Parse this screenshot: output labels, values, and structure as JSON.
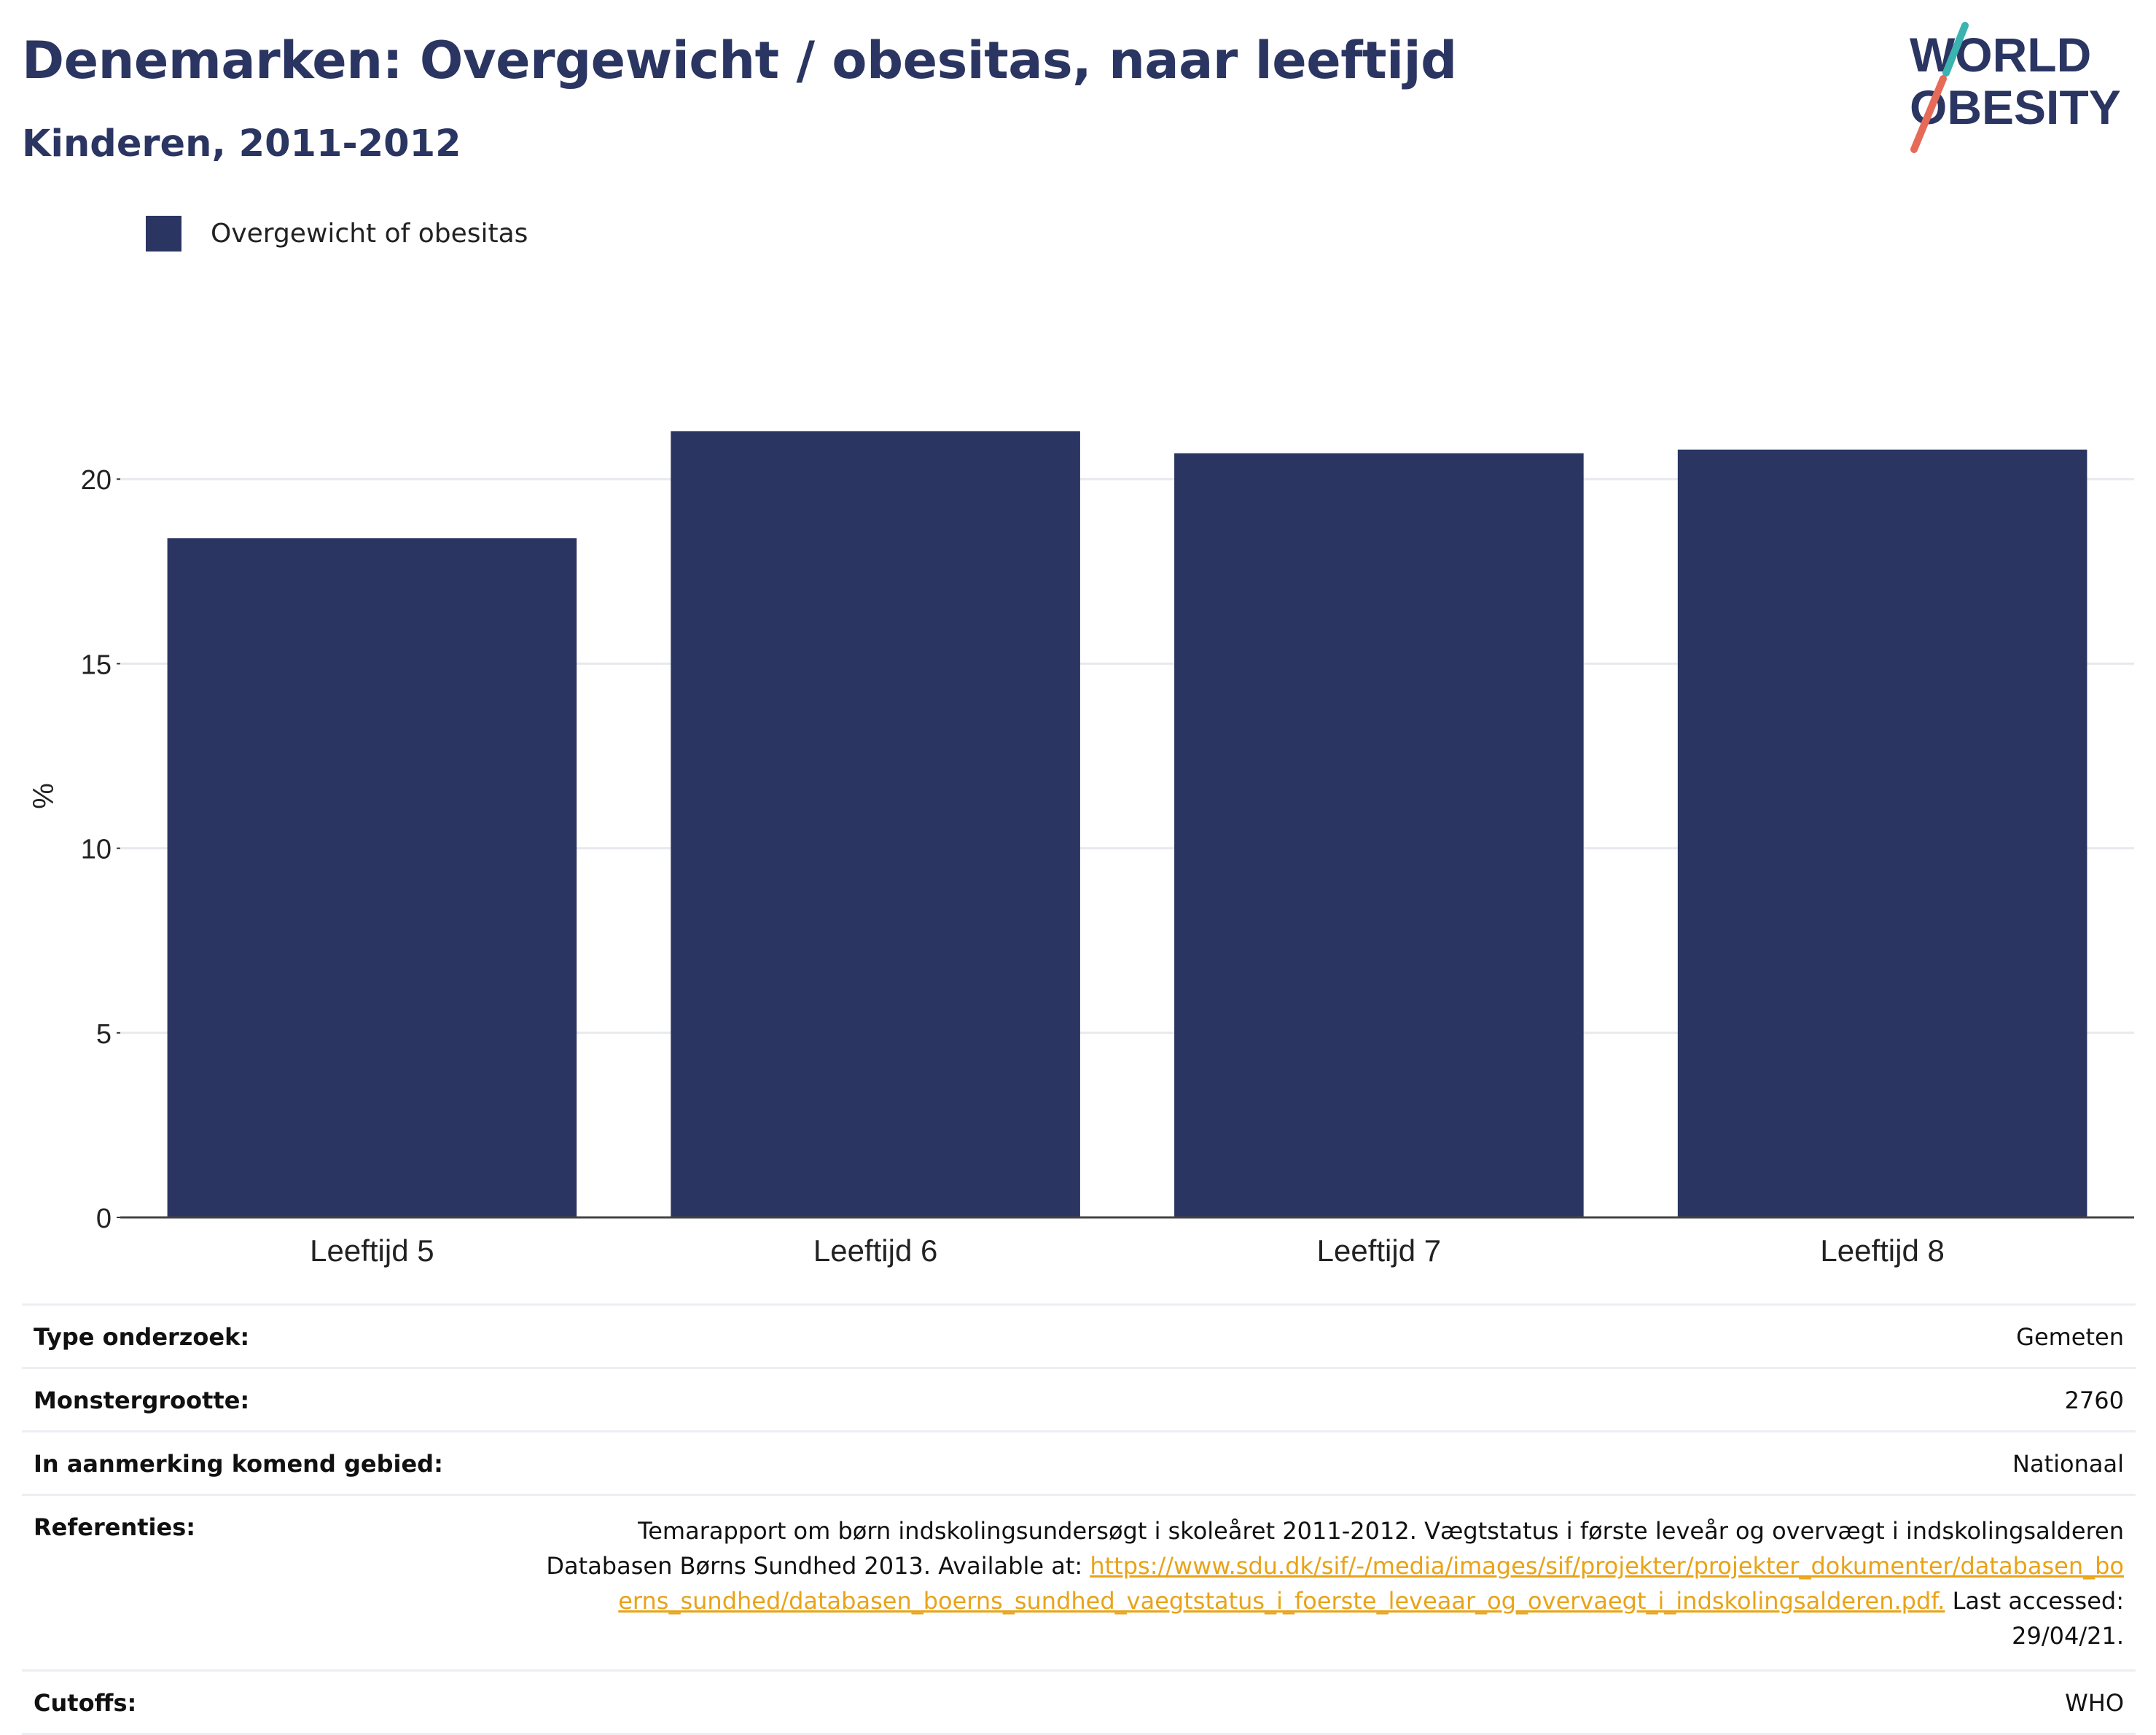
{
  "header": {
    "title": "Denemarken: Overgewicht / obesitas, naar leeftijd",
    "subtitle": "Kinderen, 2011-2012"
  },
  "logo": {
    "line1": "WORLD",
    "line2": "OBESITY",
    "colors": {
      "text": "#2a3562",
      "slash_top": "#3bb3b0",
      "slash_bottom": "#e56b58"
    }
  },
  "legend": {
    "label": "Overgewicht of obesitas",
    "color": "#2a3562"
  },
  "chart_data": {
    "type": "bar",
    "categories": [
      "Leeftijd 5",
      "Leeftijd 6",
      "Leeftijd 7",
      "Leeftijd 8"
    ],
    "series": [
      {
        "name": "Overgewicht of obesitas",
        "values": [
          18.4,
          21.3,
          20.7,
          20.8
        ],
        "color": "#2a3562"
      }
    ],
    "title": "Denemarken: Overgewicht / obesitas, naar leeftijd",
    "subtitle": "Kinderen, 2011-2012",
    "xlabel": "",
    "ylabel": "%",
    "ylim": [
      0,
      23.5
    ],
    "yticks": [
      0,
      5,
      10,
      15,
      20
    ],
    "grid": true,
    "legend_position": "top-left"
  },
  "info": {
    "type_label": "Type onderzoek:",
    "type_value": "Gemeten",
    "sample_label": "Monstergrootte:",
    "sample_value": "2760",
    "area_label": "In aanmerking komend gebied:",
    "area_value": "Nationaal",
    "ref_label": "Referenties:",
    "ref_text": "Temarapport om børn indskolingsundersøgt i skoleåret 2011-2012. Vægtstatus i første leveår og overvægt i indskolingsalderen Databasen Børns Sundhed 2013. Available at: ",
    "ref_link": "https://www.sdu.dk/sif/-/media/images/sif/projekter/projekter_dokumenter/databasen_boerns_sundhed/databasen_boerns_sundhed_vaegtstatus_i_foerste_leveaar_og_overvaegt_i_indskolingsalderen.pdf.",
    "ref_suffix": " Last accessed: 29/04/21.",
    "cutoffs_label": "Cutoffs:",
    "cutoffs_value": "WHO"
  }
}
